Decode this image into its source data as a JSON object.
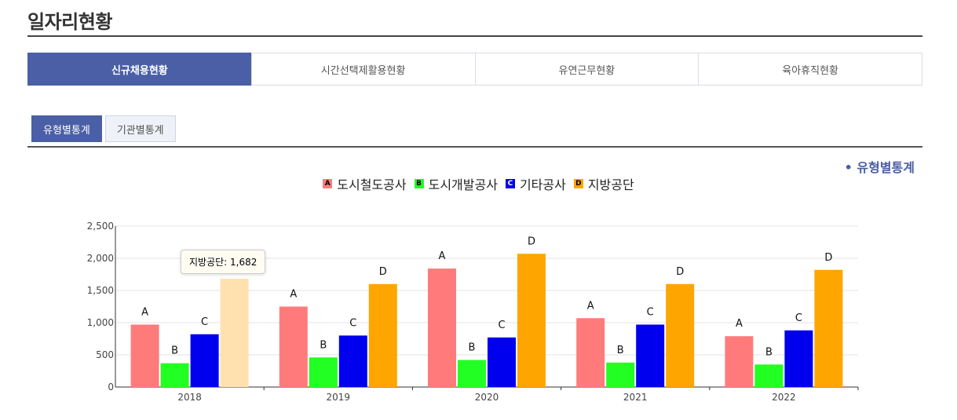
{
  "page": {
    "title": "일자리현황"
  },
  "main_tabs": [
    {
      "label": "신규채용현황",
      "active": true
    },
    {
      "label": "시간선택제활용현황",
      "active": false
    },
    {
      "label": "유연근무현황",
      "active": false
    },
    {
      "label": "육아휴직현황",
      "active": false
    }
  ],
  "sub_tabs": [
    {
      "label": "유형별통계",
      "active": true
    },
    {
      "label": "기관별통계",
      "active": false
    }
  ],
  "section_label": "• 유형별통계",
  "tooltip": {
    "text": "지방공단: 1,682"
  },
  "chart_data": {
    "type": "bar",
    "categories": [
      "2018",
      "2019",
      "2020",
      "2021",
      "2022"
    ],
    "series": [
      {
        "name": "도시철도공사",
        "short": "A",
        "color": "#ff7b7b",
        "values": [
          970,
          1250,
          1840,
          1070,
          790
        ]
      },
      {
        "name": "도시개발공사",
        "short": "B",
        "color": "#22ff22",
        "values": [
          370,
          460,
          420,
          380,
          350
        ]
      },
      {
        "name": "기타공사",
        "short": "C",
        "color": "#0000ee",
        "values": [
          820,
          800,
          770,
          970,
          880
        ]
      },
      {
        "name": "지방공단",
        "short": "D",
        "color": "#ffa500",
        "values": [
          1682,
          1600,
          2070,
          1600,
          1820
        ]
      }
    ],
    "highlight": {
      "series": 3,
      "category": 0,
      "color": "#ffe1b0"
    },
    "ylim": [
      0,
      2500
    ],
    "yticks": [
      0,
      500,
      1000,
      1500,
      2000,
      2500
    ],
    "ytick_labels": [
      "0",
      "500",
      "1,000",
      "1,500",
      "2,000",
      "2,500"
    ],
    "grid": true,
    "legend": "top-center"
  }
}
